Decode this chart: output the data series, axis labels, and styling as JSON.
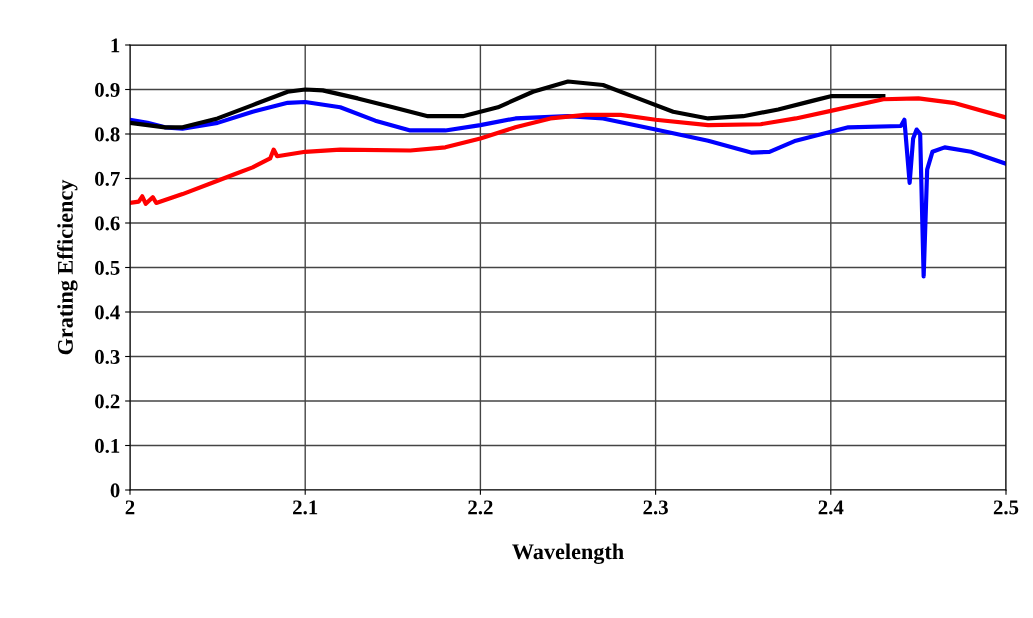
{
  "chart_data": {
    "type": "line",
    "xlabel": "Wavelength",
    "ylabel": "Grating Efficiency",
    "xlim": [
      2,
      2.5
    ],
    "xticks": [
      2,
      2.1,
      2.2,
      2.3,
      2.4,
      2.5
    ],
    "ylim": [
      0,
      1
    ],
    "yticks": [
      0,
      0.1,
      0.2,
      0.3,
      0.4,
      0.5,
      0.6,
      0.7,
      0.8,
      0.9,
      1
    ],
    "grid": true,
    "legend": false,
    "marker": "none",
    "line_style": "solid",
    "series": [
      {
        "color": "#0000ff",
        "x": [
          2.0,
          2.01,
          2.02,
          2.03,
          2.05,
          2.07,
          2.09,
          2.1,
          2.12,
          2.14,
          2.16,
          2.18,
          2.2,
          2.22,
          2.25,
          2.27,
          2.3,
          2.33,
          2.355,
          2.365,
          2.38,
          2.4,
          2.41,
          2.44,
          2.442,
          2.445,
          2.447,
          2.449,
          2.451,
          2.453,
          2.455,
          2.458,
          2.465,
          2.48,
          2.5
        ],
        "values": [
          0.832,
          0.825,
          0.815,
          0.812,
          0.825,
          0.85,
          0.87,
          0.872,
          0.86,
          0.83,
          0.808,
          0.808,
          0.82,
          0.835,
          0.84,
          0.835,
          0.81,
          0.785,
          0.758,
          0.76,
          0.785,
          0.805,
          0.815,
          0.818,
          0.832,
          0.69,
          0.79,
          0.81,
          0.8,
          0.48,
          0.72,
          0.76,
          0.77,
          0.76,
          0.733
        ]
      },
      {
        "color": "#000000",
        "x": [
          2.0,
          2.02,
          2.03,
          2.05,
          2.07,
          2.09,
          2.1,
          2.11,
          2.13,
          2.15,
          2.17,
          2.19,
          2.21,
          2.23,
          2.25,
          2.27,
          2.29,
          2.31,
          2.33,
          2.35,
          2.37,
          2.39,
          2.4,
          2.43
        ],
        "values": [
          0.825,
          0.815,
          0.815,
          0.835,
          0.865,
          0.895,
          0.9,
          0.898,
          0.88,
          0.86,
          0.84,
          0.84,
          0.86,
          0.895,
          0.918,
          0.91,
          0.88,
          0.85,
          0.835,
          0.84,
          0.855,
          0.875,
          0.885,
          0.885
        ]
      },
      {
        "color": "#ff0000",
        "x": [
          2.0,
          2.005,
          2.007,
          2.009,
          2.013,
          2.015,
          2.03,
          2.05,
          2.06,
          2.07,
          2.08,
          2.082,
          2.084,
          2.1,
          2.12,
          2.16,
          2.18,
          2.2,
          2.22,
          2.24,
          2.26,
          2.28,
          2.3,
          2.33,
          2.36,
          2.38,
          2.4,
          2.43,
          2.45,
          2.47,
          2.5
        ],
        "values": [
          0.645,
          0.648,
          0.66,
          0.643,
          0.658,
          0.645,
          0.665,
          0.695,
          0.71,
          0.725,
          0.745,
          0.765,
          0.75,
          0.76,
          0.765,
          0.763,
          0.77,
          0.79,
          0.815,
          0.835,
          0.843,
          0.843,
          0.832,
          0.82,
          0.822,
          0.835,
          0.852,
          0.878,
          0.88,
          0.87,
          0.837
        ]
      }
    ]
  }
}
